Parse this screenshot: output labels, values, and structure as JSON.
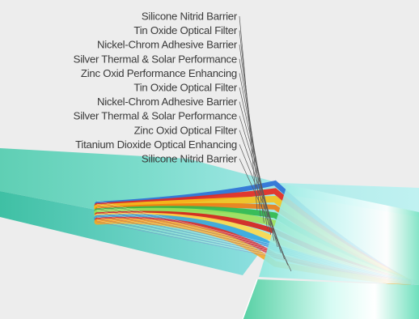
{
  "figure": {
    "layer_labels": [
      "Silicone Nitrid Barrier",
      "Tin Oxide Optical Filter",
      "Nickel-Chrom Adhesive Barrier",
      "Silver Thermal & Solar Performance",
      "Zinc Oxid Performance Enhancing",
      "Tin Oxide Optical Filter",
      "Nickel-Chrom Adhesive Barrier",
      "Silver Thermal & Solar Performance",
      "Zinc Oxid Optical Filter",
      "Titanium Dioxide Optical Enhancing",
      "Silicone Nitrid Barrier"
    ],
    "band_colors": [
      "#2b6fd6",
      "#e8261c",
      "#f6c21b",
      "#f07c12",
      "#2fb84a",
      "#9fe05a",
      "#d81f1a",
      "#ffd84a",
      "#36a6e0",
      "#e0302a",
      "#f3a826"
    ]
  }
}
